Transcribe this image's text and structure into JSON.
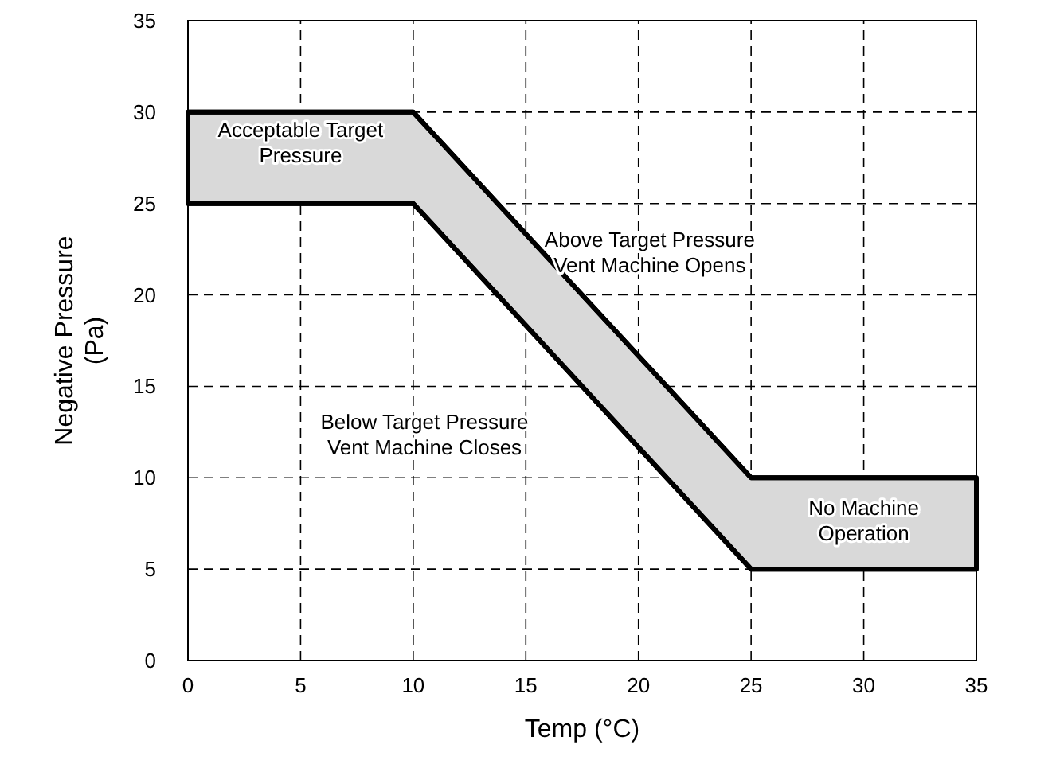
{
  "chart_data": {
    "type": "line",
    "xlabel": "Temp (°C)",
    "ylabel": "Negative Pressure\n(Pa)",
    "xlim": [
      0,
      35
    ],
    "ylim": [
      0,
      35
    ],
    "xticks": [
      0,
      5,
      10,
      15,
      20,
      25,
      30,
      35
    ],
    "yticks": [
      0,
      5,
      10,
      15,
      20,
      25,
      30,
      35
    ],
    "grid": true,
    "series": [
      {
        "x": [
          0,
          10,
          25,
          35
        ],
        "values": [
          30,
          30,
          10,
          10
        ],
        "lower": [
          25,
          25,
          5,
          5
        ],
        "upper": [
          30,
          30,
          10,
          10
        ],
        "color": "#000000"
      },
      {
        "x": [
          0,
          10,
          25,
          35
        ],
        "values": [
          25,
          25,
          5,
          5
        ],
        "color": "#000000"
      }
    ],
    "annotations": [
      "Acceptable Target\nPressure",
      "Above Target Pressure\nVent Machine Opens",
      "Below Target Pressure\nVent Machine Closes",
      "No Machine\nOperation"
    ]
  }
}
